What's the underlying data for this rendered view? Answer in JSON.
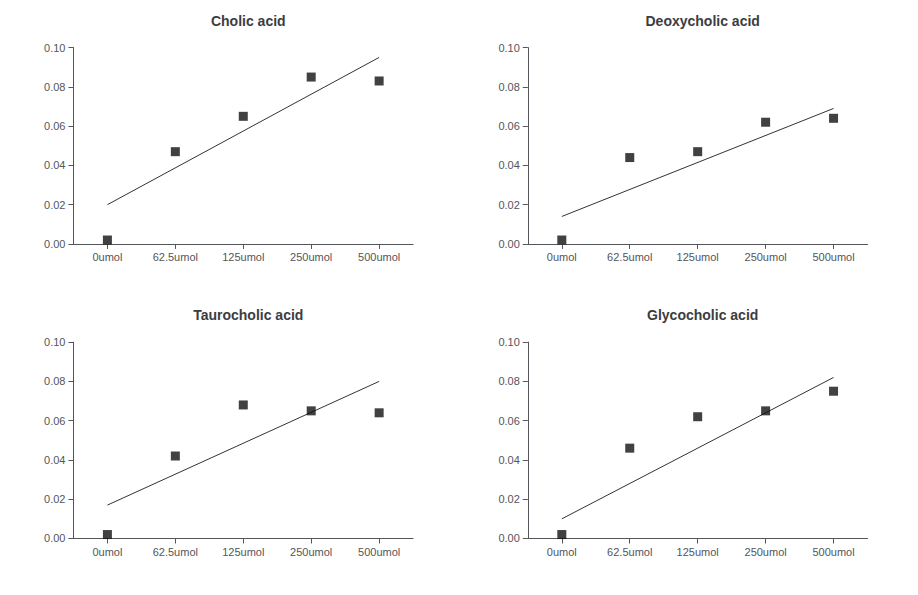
{
  "chart_data": [
    {
      "type": "scatter",
      "title": "Cholic acid",
      "categories": [
        "0umol",
        "62.5umol",
        "125umol",
        "250umol",
        "500umol"
      ],
      "values": [
        0.002,
        0.047,
        0.065,
        0.085,
        0.083
      ],
      "trend_line": [
        0.02,
        0.095
      ],
      "color": "#111111",
      "marker": "square",
      "line_color": "#333333",
      "ylim": [
        0,
        0.1
      ],
      "yticks": [
        {
          "value": 0,
          "label": "0.00"
        },
        0.02,
        0.04,
        0.06,
        0.08,
        {
          "value": 0.1,
          "label": "0.10"
        }
      ],
      "grid": false
    },
    {
      "type": "scatter",
      "title": "Deoxycholic acid",
      "categories": [
        "0umol",
        "62.5umol",
        "125umol",
        "250umol",
        "500umol"
      ],
      "values": [
        0.002,
        0.044,
        0.047,
        0.062,
        0.064
      ],
      "trend_line": [
        0.014,
        0.069
      ],
      "color": "#111111",
      "marker": "square",
      "line_color": "#333333",
      "ylim": [
        0,
        0.1
      ],
      "yticks": [
        {
          "value": 0,
          "label": "0.00"
        },
        0.02,
        0.04,
        0.06,
        0.08,
        {
          "value": 0.1,
          "label": "0.10"
        }
      ],
      "grid": false
    },
    {
      "type": "scatter",
      "title": "Taurocholic acid",
      "categories": [
        "0umol",
        "62.5umol",
        "125umol",
        "250umol",
        "500umol"
      ],
      "values": [
        0.002,
        0.042,
        0.068,
        0.065,
        0.064
      ],
      "trend_line": [
        0.017,
        0.08
      ],
      "color": "#111111",
      "marker": "square",
      "line_color": "#333333",
      "ylim": [
        0,
        0.1
      ],
      "yticks": [
        {
          "value": 0,
          "label": "0.00"
        },
        0.02,
        0.04,
        0.06,
        0.08,
        {
          "value": 0.1,
          "label": "0.10"
        }
      ],
      "grid": false
    },
    {
      "type": "scatter",
      "title": "Glycocholic acid",
      "categories": [
        "0umol",
        "62.5umol",
        "125umol",
        "250umol",
        "500umol"
      ],
      "values": [
        0.002,
        0.046,
        0.062,
        0.065,
        0.075
      ],
      "trend_line": [
        0.01,
        0.082
      ],
      "color": "#111111",
      "marker": "square",
      "line_color": "#333333",
      "ylim": [
        0,
        0.1
      ],
      "yticks": [
        {
          "value": 0,
          "label": "0.00"
        },
        0.02,
        0.04,
        0.06,
        0.08,
        {
          "value": 0.1,
          "label": "0.10"
        }
      ],
      "grid": false
    }
  ]
}
